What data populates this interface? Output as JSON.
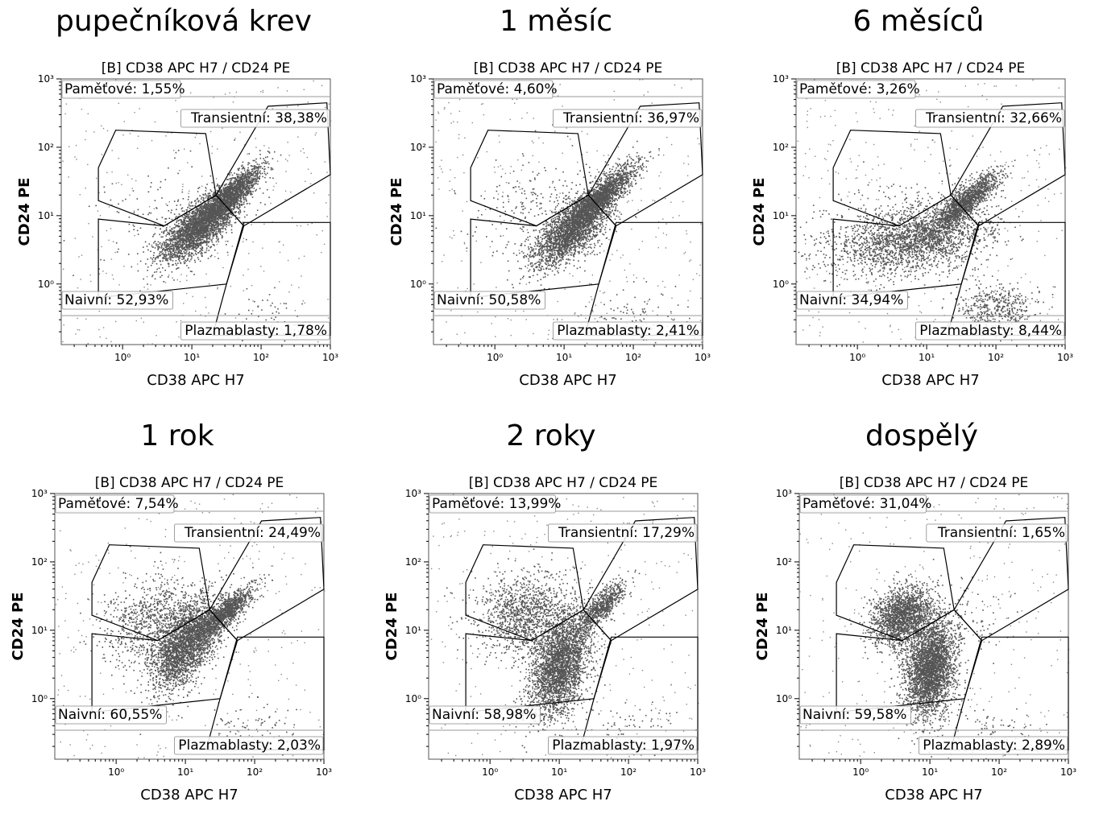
{
  "chart_data": [
    {
      "type": "scatter",
      "title": "pupečníková krev",
      "subtitle": "[B] CD38 APC H7 / CD24 PE",
      "xlabel": "CD38 APC H7",
      "ylabel": "CD24 PE",
      "xscale": "log",
      "yscale": "log",
      "xlim": [
        0.13,
        1000
      ],
      "ylim": [
        0.13,
        1000
      ],
      "xticks": [
        "10⁰",
        "10¹",
        "10²",
        "10³"
      ],
      "yticks": [
        "10⁰",
        "10¹",
        "10²",
        "10³"
      ],
      "gates": [
        {
          "name": "Paměťové",
          "value": "Paměťové: 1,55%"
        },
        {
          "name": "Transientní",
          "value": "Transientní: 38,38%"
        },
        {
          "name": "Naivní",
          "value": "Naivní: 52,93%"
        },
        {
          "name": "Plazmablasty",
          "value": "Plazmablasty: 1,78%"
        }
      ],
      "point_color": "#555555"
    },
    {
      "type": "scatter",
      "title": "1 měsíc",
      "subtitle": "[B] CD38 APC H7 / CD24 PE",
      "xlabel": "CD38 APC H7",
      "ylabel": "CD24 PE",
      "xscale": "log",
      "yscale": "log",
      "xlim": [
        0.13,
        1000
      ],
      "ylim": [
        0.13,
        1000
      ],
      "xticks": [
        "10⁰",
        "10¹",
        "10²",
        "10³"
      ],
      "yticks": [
        "10⁰",
        "10¹",
        "10²",
        "10³"
      ],
      "gates": [
        {
          "name": "Paměťové",
          "value": "Paměťové: 4,60%"
        },
        {
          "name": "Transientní",
          "value": "Transientní: 36,97%"
        },
        {
          "name": "Naivní",
          "value": "Naivní: 50,58%"
        },
        {
          "name": "Plazmablasty",
          "value": "Plazmablasty: 2,41%"
        }
      ],
      "point_color": "#555555"
    },
    {
      "type": "scatter",
      "title": "6 měsíců",
      "subtitle": "[B] CD38 APC H7 / CD24 PE",
      "xlabel": "CD38 APC H7",
      "ylabel": "CD24 PE",
      "xscale": "log",
      "yscale": "log",
      "xlim": [
        0.13,
        1000
      ],
      "ylim": [
        0.13,
        1000
      ],
      "xticks": [
        "10⁰",
        "10¹",
        "10²",
        "10³"
      ],
      "yticks": [
        "10⁰",
        "10¹",
        "10²",
        "10³"
      ],
      "gates": [
        {
          "name": "Paměťové",
          "value": "Paměťové: 3,26%"
        },
        {
          "name": "Transientní",
          "value": "Transientní: 32,66%"
        },
        {
          "name": "Naivní",
          "value": "Naivní: 34,94%"
        },
        {
          "name": "Plazmablasty",
          "value": "Plazmablasty: 8,44%"
        }
      ],
      "point_color": "#555555"
    },
    {
      "type": "scatter",
      "title": "1 rok",
      "subtitle": "[B] CD38 APC H7 / CD24 PE",
      "xlabel": "CD38 APC H7",
      "ylabel": "CD24 PE",
      "xscale": "log",
      "yscale": "log",
      "xlim": [
        0.13,
        1000
      ],
      "ylim": [
        0.13,
        1000
      ],
      "xticks": [
        "10⁰",
        "10¹",
        "10²",
        "10³"
      ],
      "yticks": [
        "10⁰",
        "10¹",
        "10²",
        "10³"
      ],
      "gates": [
        {
          "name": "Paměťové",
          "value": "Paměťové: 7,54%"
        },
        {
          "name": "Transientní",
          "value": "Transientní: 24,49%"
        },
        {
          "name": "Naivní",
          "value": "Naivní: 60,55%"
        },
        {
          "name": "Plazmablasty",
          "value": "Plazmablasty: 2,03%"
        }
      ],
      "point_color": "#555555"
    },
    {
      "type": "scatter",
      "title": "2 roky",
      "subtitle": "[B] CD38 APC H7 / CD24 PE",
      "xlabel": "CD38 APC H7",
      "ylabel": "CD24 PE",
      "xscale": "log",
      "yscale": "log",
      "xlim": [
        0.13,
        1000
      ],
      "ylim": [
        0.13,
        1000
      ],
      "xticks": [
        "10⁰",
        "10¹",
        "10²",
        "10³"
      ],
      "yticks": [
        "10⁰",
        "10¹",
        "10²",
        "10³"
      ],
      "gates": [
        {
          "name": "Paměťové",
          "value": "Paměťové: 13,99%"
        },
        {
          "name": "Transientní",
          "value": "Transientní: 17,29%"
        },
        {
          "name": "Naivní",
          "value": "Naivní: 58,98%"
        },
        {
          "name": "Plazmablasty",
          "value": "Plazmablasty: 1,97%"
        }
      ],
      "point_color": "#555555"
    },
    {
      "type": "scatter",
      "title": "dospělý",
      "subtitle": "[B] CD38 APC H7 / CD24 PE",
      "xlabel": "CD38 APC H7",
      "ylabel": "CD24 PE",
      "xscale": "log",
      "yscale": "log",
      "xlim": [
        0.13,
        1000
      ],
      "ylim": [
        0.13,
        1000
      ],
      "xticks": [
        "10⁰",
        "10¹",
        "10²",
        "10³"
      ],
      "yticks": [
        "10⁰",
        "10¹",
        "10²",
        "10³"
      ],
      "gates": [
        {
          "name": "Paměťové",
          "value": "Paměťové: 31,04%"
        },
        {
          "name": "Transientní",
          "value": "Transientní: 1,65%"
        },
        {
          "name": "Naivní",
          "value": "Naivní: 59,58%"
        },
        {
          "name": "Plazmablasty",
          "value": "Plazmablasty: 2,89%"
        }
      ],
      "point_color": "#555555"
    }
  ]
}
